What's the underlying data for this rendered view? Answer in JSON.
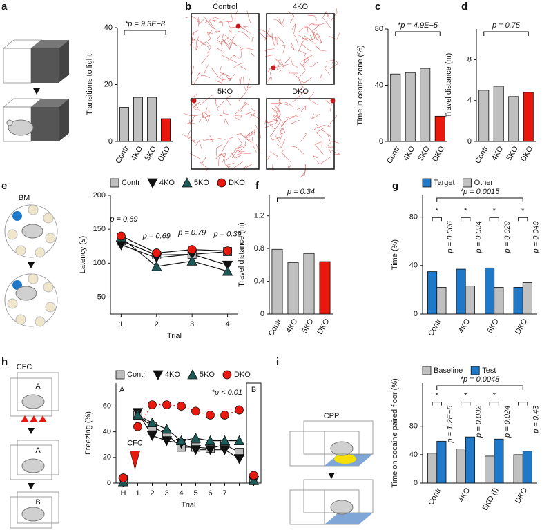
{
  "chart_data": [
    {
      "panel": "a",
      "type": "bar",
      "ylabel": "Transitions to light",
      "categories": [
        "Contr",
        "4KO",
        "5KO",
        "DKO"
      ],
      "values": [
        12,
        15.5,
        15.5,
        8
      ],
      "colors": [
        "#c0c0c0",
        "#c0c0c0",
        "#c0c0c0",
        "#e8180f"
      ],
      "ylim": [
        0,
        40
      ],
      "yticks": [
        0,
        20,
        40
      ],
      "annotation": "*p = 9.3E−8"
    },
    {
      "panel": "b",
      "type": "image",
      "labels": [
        "Control",
        "4KO",
        "5KO",
        "DKO"
      ]
    },
    {
      "panel": "c",
      "type": "bar",
      "ylabel": "Time in center zone (%)",
      "categories": [
        "Contr",
        "4KO",
        "5KO",
        "DKO"
      ],
      "values": [
        48,
        49,
        52,
        18
      ],
      "colors": [
        "#c0c0c0",
        "#c0c0c0",
        "#c0c0c0",
        "#e8180f"
      ],
      "ylim": [
        0,
        80
      ],
      "yticks": [
        0,
        40,
        80
      ],
      "annotation": "*p = 4.9E−5"
    },
    {
      "panel": "d",
      "type": "bar",
      "ylabel": "Travel distance (m)",
      "categories": [
        "Contr",
        "4KO",
        "5KO",
        "DKO"
      ],
      "values": [
        5.0,
        5.4,
        4.4,
        4.8
      ],
      "colors": [
        "#c0c0c0",
        "#c0c0c0",
        "#c0c0c0",
        "#e8180f"
      ],
      "ylim": [
        0,
        11
      ],
      "yticks": [
        0,
        4,
        8
      ],
      "annotation": "p = 0.75"
    },
    {
      "panel": "e",
      "type": "line",
      "illustration_labels": [
        "BM"
      ],
      "ylabel": "Latency (s)",
      "xlabel": "Trial",
      "x": [
        1,
        2,
        3,
        4
      ],
      "xlim": [
        0.7,
        4.3
      ],
      "xticks": [
        1,
        2,
        3,
        4
      ],
      "ylim": [
        25,
        200
      ],
      "yticks": [
        50,
        100,
        150,
        200
      ],
      "series": [
        {
          "name": "Contr",
          "color": "#bdbdbd",
          "marker": "square",
          "values": [
            133,
            112,
            113,
            117
          ]
        },
        {
          "name": "4KO",
          "color": "#111111",
          "marker": "triangle-down",
          "values": [
            127,
            108,
            113,
            97
          ]
        },
        {
          "name": "5KO",
          "color": "#1d5a58",
          "marker": "triangle-up",
          "values": [
            138,
            95,
            103,
            88
          ]
        },
        {
          "name": "DKO",
          "color": "#e8180f",
          "marker": "circle",
          "values": [
            140,
            115,
            120,
            118
          ]
        }
      ],
      "point_labels": [
        "p = 0.69",
        "p = 0.69",
        "p = 0.79",
        "p = 0.39"
      ]
    },
    {
      "panel": "f",
      "type": "bar",
      "ylabel": "Travel distance (m)",
      "categories": [
        "Contr",
        "4KO",
        "5KO",
        "DKO"
      ],
      "values": [
        0.79,
        0.63,
        0.74,
        0.64
      ],
      "colors": [
        "#c0c0c0",
        "#c0c0c0",
        "#c0c0c0",
        "#e8180f"
      ],
      "ylim": [
        0,
        1.45
      ],
      "yticks": [
        0,
        0.4,
        0.8,
        1.2
      ],
      "annotation": "p = 0.34"
    },
    {
      "panel": "g",
      "type": "grouped-bar",
      "ylabel": "Time (%)",
      "categories": [
        "Contr",
        "4KO",
        "5KO",
        "DKO"
      ],
      "ylim": [
        0,
        98
      ],
      "yticks": [
        0,
        40,
        80
      ],
      "series": [
        {
          "name": "Target",
          "color": "#1f78c8",
          "values": [
            35,
            37,
            38,
            22
          ]
        },
        {
          "name": "Other",
          "color": "#c0c0c0",
          "values": [
            22,
            23,
            22,
            26
          ]
        }
      ],
      "group_marks": [
        "*",
        "*",
        "*",
        "*"
      ],
      "group_labels": [
        "p = 0.006",
        "p = 0.034",
        "p = 0.029",
        "p = 0.049"
      ],
      "annotation": "*p = 0.0015"
    },
    {
      "panel": "h",
      "type": "line",
      "illustration_labels": [
        "CFC",
        "A",
        "A",
        "B"
      ],
      "ylabel": "Freezing (%)",
      "xlabel": "Trial",
      "categories": [
        "H",
        "1",
        "2",
        "3",
        "4",
        "5",
        "6",
        "7",
        null,
        null
      ],
      "ylim": [
        0,
        78
      ],
      "yticks": [
        0,
        20,
        40,
        60
      ],
      "series": [
        {
          "name": "Contr",
          "color": "#bdbdbd",
          "marker": "square",
          "values": [
            3,
            53,
            44,
            38,
            28,
            28,
            27,
            30,
            24,
            2
          ]
        },
        {
          "name": "4KO",
          "color": "#111111",
          "marker": "triangle-down",
          "values": [
            1,
            55,
            37,
            33,
            31,
            26,
            26,
            26,
            19,
            2
          ]
        },
        {
          "name": "5KO",
          "color": "#1d5a58",
          "marker": "triangle-up",
          "values": [
            1,
            53,
            47,
            42,
            33,
            35,
            33,
            33,
            33,
            2
          ]
        },
        {
          "name": "DKO",
          "color": "#e8180f",
          "marker": "circle",
          "line_style": "dotted",
          "values": [
            4,
            44,
            61,
            61,
            60,
            56,
            53,
            53,
            57,
            6
          ]
        }
      ],
      "context_labels": [
        "A",
        "B"
      ],
      "shock_label": "CFC",
      "annotation": "*p < 0.01"
    },
    {
      "panel": "i",
      "type": "grouped-bar",
      "illustration_labels": [
        "CPP"
      ],
      "ylabel": "Time on cocaine paired floor (%)",
      "categories": [
        "Contr",
        "4KO",
        "5KO (f)",
        "DKO"
      ],
      "ylim": [
        0,
        141
      ],
      "yticks": [
        0,
        40,
        80
      ],
      "series": [
        {
          "name": "Baseline",
          "color": "#c0c0c0",
          "values": [
            42,
            48,
            38,
            40
          ]
        },
        {
          "name": "Test",
          "color": "#1f78c8",
          "values": [
            59,
            65,
            62,
            45
          ]
        }
      ],
      "group_marks": [
        "*",
        "*",
        "*",
        null
      ],
      "group_labels": [
        "p = 1.2E−6",
        "p = 0.002",
        "p = 0.024",
        "p = 0.43"
      ],
      "annotation": "*p = 0.0048"
    }
  ]
}
